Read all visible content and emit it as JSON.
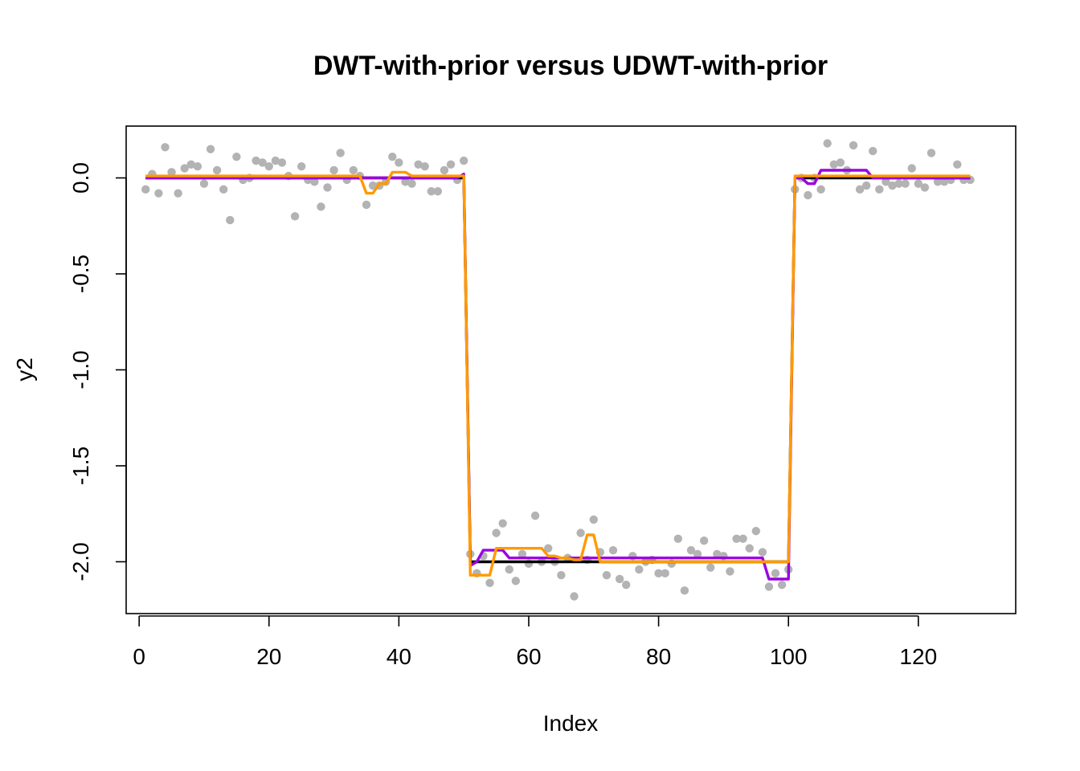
{
  "chart_data": {
    "type": "line",
    "title": "DWT-with-prior versus UDWT-with-prior",
    "xlabel": "Index",
    "ylabel": "y2",
    "xlim": [
      -2,
      135
    ],
    "ylim": [
      -2.27,
      0.27
    ],
    "x_ticks": [
      0,
      20,
      40,
      60,
      80,
      100,
      120
    ],
    "y_ticks": [
      0.0,
      -0.5,
      -1.0,
      -1.5,
      -2.0
    ],
    "y_tick_labels": [
      "0.0",
      "-0.5",
      "-1.0",
      "-1.5",
      "-2.0"
    ],
    "grid": false,
    "legend": "none",
    "colors": {
      "points": "#b3b3b3",
      "truth": "#000000",
      "dwt": "#9a00e0",
      "udwt": "#ff9a00"
    },
    "points": {
      "x": [
        1,
        2,
        3,
        4,
        5,
        6,
        7,
        8,
        9,
        10,
        11,
        12,
        13,
        14,
        15,
        16,
        17,
        18,
        19,
        20,
        21,
        22,
        23,
        24,
        25,
        26,
        27,
        28,
        29,
        30,
        31,
        32,
        33,
        34,
        35,
        36,
        37,
        38,
        39,
        40,
        41,
        42,
        43,
        44,
        45,
        46,
        47,
        48,
        49,
        50,
        51,
        52,
        53,
        54,
        55,
        56,
        57,
        58,
        59,
        60,
        61,
        62,
        63,
        64,
        65,
        66,
        67,
        68,
        69,
        70,
        71,
        72,
        73,
        74,
        75,
        76,
        77,
        78,
        79,
        80,
        81,
        82,
        83,
        84,
        85,
        86,
        87,
        88,
        89,
        90,
        91,
        92,
        93,
        94,
        95,
        96,
        97,
        98,
        99,
        100,
        101,
        102,
        103,
        104,
        105,
        106,
        107,
        108,
        109,
        110,
        111,
        112,
        113,
        114,
        115,
        116,
        117,
        118,
        119,
        120,
        121,
        122,
        123,
        124,
        125,
        126,
        127,
        128
      ],
      "y": [
        -0.06,
        0.02,
        -0.08,
        0.16,
        0.03,
        -0.08,
        0.05,
        0.07,
        0.06,
        -0.03,
        0.15,
        0.04,
        -0.06,
        -0.22,
        0.11,
        -0.01,
        0.0,
        0.09,
        0.08,
        0.06,
        0.09,
        0.08,
        0.01,
        -0.2,
        0.06,
        -0.01,
        -0.02,
        -0.15,
        -0.05,
        0.04,
        0.13,
        -0.01,
        0.04,
        0.01,
        -0.14,
        -0.04,
        -0.04,
        -0.02,
        0.11,
        0.08,
        -0.02,
        -0.03,
        0.07,
        0.06,
        -0.07,
        -0.07,
        0.04,
        0.07,
        -0.01,
        0.09,
        -1.96,
        -2.06,
        -1.97,
        -2.11,
        -1.85,
        -1.8,
        -2.04,
        -2.1,
        -1.96,
        -2.01,
        -1.76,
        -2.0,
        -1.93,
        -2.0,
        -2.07,
        -1.98,
        -2.18,
        -1.85,
        -1.99,
        -1.78,
        -1.95,
        -2.07,
        -1.94,
        -2.09,
        -2.12,
        -1.97,
        -2.04,
        -2.0,
        -1.99,
        -2.06,
        -2.06,
        -2.01,
        -1.88,
        -2.15,
        -1.94,
        -1.96,
        -1.89,
        -2.03,
        -1.96,
        -1.97,
        -2.05,
        -1.88,
        -1.88,
        -1.93,
        -1.84,
        -1.95,
        -2.13,
        -2.06,
        -2.12,
        -2.04,
        -0.06,
        0.0,
        -0.09,
        0.0,
        -0.06,
        0.18,
        0.07,
        0.08,
        0.04,
        0.17,
        -0.06,
        -0.04,
        0.14,
        -0.06,
        -0.02,
        -0.04,
        -0.03,
        -0.03,
        0.05,
        -0.03,
        -0.05,
        0.13,
        -0.02,
        -0.02,
        -0.01,
        0.07,
        -0.01,
        -0.01
      ]
    },
    "series": [
      {
        "values_x": [
          1,
          50,
          51,
          100,
          101,
          128
        ],
        "values_y": [
          0.0,
          0.0,
          -2.0,
          -2.0,
          0.0,
          0.0
        ]
      },
      {
        "values_x": [
          1,
          33,
          34,
          38,
          39,
          47,
          48,
          49,
          50,
          51,
          52,
          53,
          54,
          56,
          57,
          64,
          65,
          68,
          69,
          72,
          96,
          97,
          100,
          101,
          102,
          103,
          104,
          105,
          112,
          113,
          128
        ],
        "values_y": [
          0.0,
          0.0,
          0.0,
          0.0,
          0.0,
          0.0,
          0.0,
          0.0,
          0.02,
          -2.02,
          -2.0,
          -1.94,
          -1.94,
          -1.94,
          -1.98,
          -1.98,
          -1.98,
          -1.98,
          -1.98,
          -1.98,
          -1.98,
          -2.09,
          -2.09,
          0.0,
          0.0,
          -0.03,
          -0.03,
          0.04,
          0.04,
          0.0,
          0.0
        ]
      },
      {
        "values_x": [
          1,
          33,
          34,
          35,
          36,
          37,
          38,
          39,
          40,
          41,
          42,
          43,
          44,
          45,
          46,
          47,
          48,
          49,
          50,
          51,
          52,
          53,
          54,
          55,
          56,
          57,
          58,
          59,
          60,
          61,
          62,
          63,
          64,
          65,
          66,
          67,
          68,
          69,
          70,
          71,
          72,
          73,
          96,
          97,
          100,
          101,
          102,
          103,
          128
        ],
        "values_y": [
          0.01,
          0.01,
          0.01,
          -0.08,
          -0.08,
          -0.03,
          -0.03,
          0.03,
          0.03,
          0.03,
          0.01,
          0.01,
          0.01,
          0.01,
          0.01,
          0.01,
          0.01,
          0.01,
          0.01,
          -2.07,
          -2.07,
          -2.07,
          -2.07,
          -1.93,
          -1.93,
          -1.93,
          -1.93,
          -1.93,
          -1.93,
          -1.93,
          -1.93,
          -1.97,
          -1.97,
          -1.98,
          -1.98,
          -1.99,
          -1.99,
          -1.86,
          -1.86,
          -2.0,
          -2.0,
          -2.0,
          -2.0,
          -2.0,
          -2.0,
          0.01,
          0.01,
          0.01,
          0.01
        ]
      }
    ]
  }
}
